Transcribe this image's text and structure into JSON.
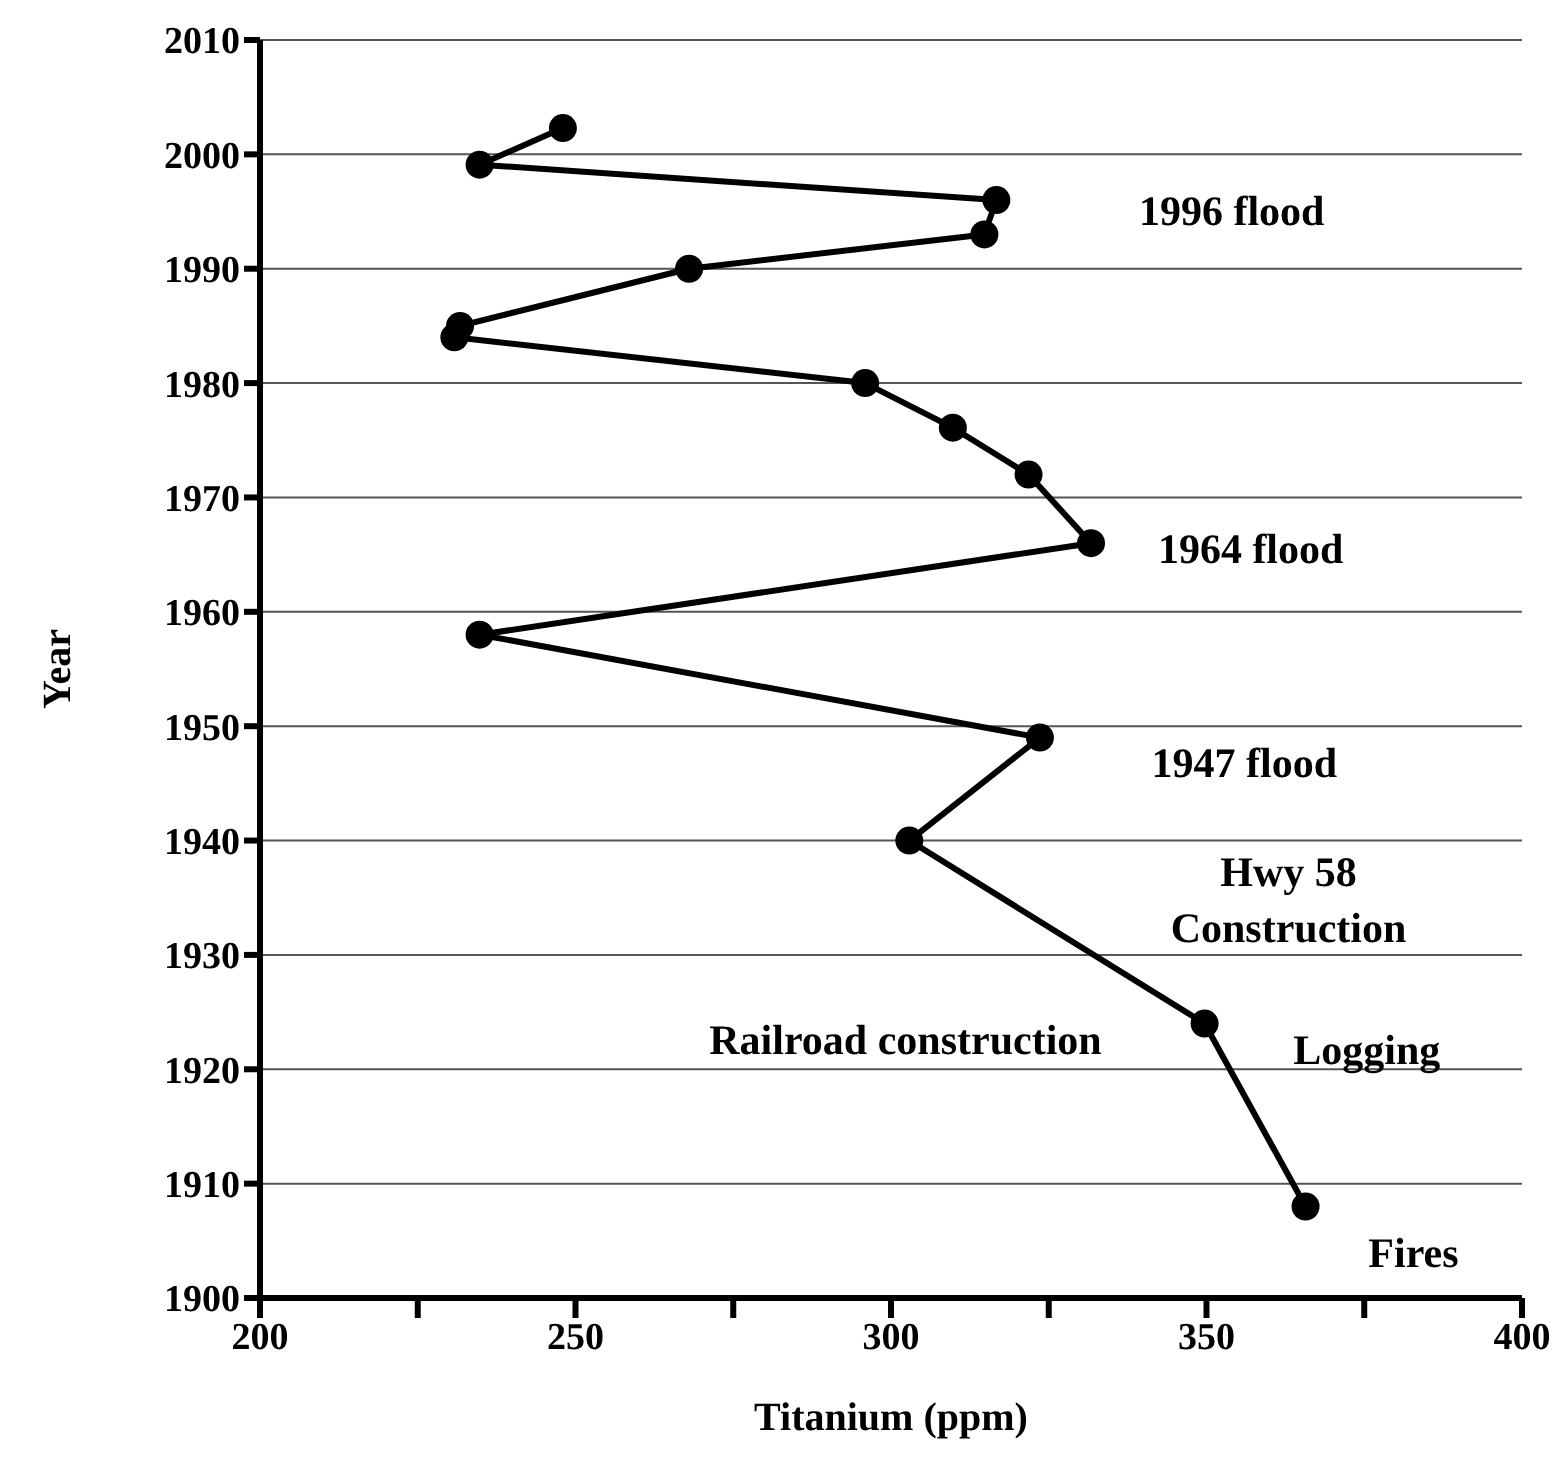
{
  "chart_data": {
    "type": "line",
    "xlabel": "Titanium (ppm)",
    "ylabel": "Year",
    "x": [
      248.0,
      234.8,
      316.7,
      314.8,
      268.0,
      231.7,
      230.8,
      295.9,
      309.8,
      321.8,
      331.7,
      234.8,
      323.6,
      302.9,
      349.7,
      365.7
    ],
    "series": [
      {
        "color": "#000000",
        "values": [
          2002.3,
          1999.1,
          1996.0,
          1993.0,
          1990.0,
          1985.0,
          1984.0,
          1980.0,
          1976.1,
          1972.0,
          1966.0,
          1958.0,
          1949.0,
          1940.0,
          1924.0,
          1908.0
        ]
      }
    ],
    "xlim": [
      200,
      400
    ],
    "xticks": [
      200,
      {
        "value": 225,
        "label": null
      },
      250,
      {
        "value": 275,
        "label": null
      },
      300,
      {
        "value": 325,
        "label": null
      },
      350,
      {
        "value": 375,
        "label": null
      },
      400
    ],
    "ylim": [
      1900,
      2010
    ],
    "yticks": [
      1900,
      1910,
      1920,
      1930,
      1940,
      1950,
      1960,
      1970,
      1980,
      1990,
      2000,
      2010
    ],
    "grid": "y",
    "marker": "circle",
    "line_style": "solid",
    "legend": false,
    "annotations": [
      "1996 flood",
      "1964 flood",
      "1947 flood",
      "Hwy 58\nConstruction",
      "Railroad construction",
      "Logging",
      "Fires"
    ]
  }
}
